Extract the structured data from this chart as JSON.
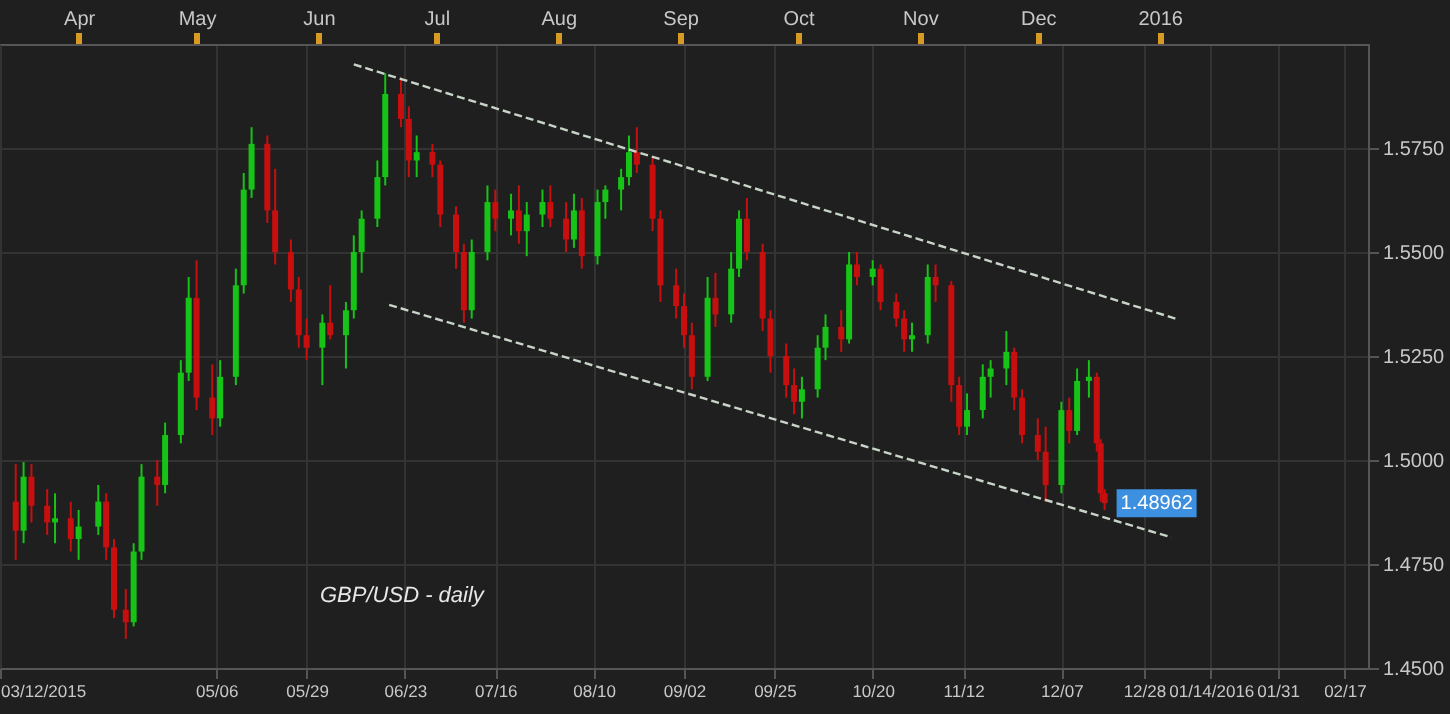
{
  "chart_data": {
    "type": "candlestick",
    "annotations": [
      "GBP/USD - daily",
      {
        "text": "1.48962",
        "x": "2015-12-18",
        "y": 1.48962
      }
    ],
    "x": [
      "2015-03-16",
      "2015-03-18",
      "2015-03-20",
      "2015-03-24",
      "2015-03-26",
      "2015-03-30",
      "2015-04-01",
      "2015-04-06",
      "2015-04-08",
      "2015-04-10",
      "2015-04-13",
      "2015-04-15",
      "2015-04-17",
      "2015-04-21",
      "2015-04-23",
      "2015-04-27",
      "2015-04-29",
      "2015-05-01",
      "2015-05-05",
      "2015-05-07",
      "2015-05-11",
      "2015-05-13",
      "2015-05-15",
      "2015-05-19",
      "2015-05-21",
      "2015-05-25",
      "2015-05-27",
      "2015-05-29",
      "2015-06-02",
      "2015-06-04",
      "2015-06-08",
      "2015-06-10",
      "2015-06-12",
      "2015-06-16",
      "2015-06-18",
      "2015-06-22",
      "2015-06-24",
      "2015-06-26",
      "2015-06-30",
      "2015-07-02",
      "2015-07-06",
      "2015-07-08",
      "2015-07-10",
      "2015-07-14",
      "2015-07-16",
      "2015-07-20",
      "2015-07-22",
      "2015-07-24",
      "2015-07-28",
      "2015-07-30",
      "2015-08-03",
      "2015-08-05",
      "2015-08-07",
      "2015-08-11",
      "2015-08-13",
      "2015-08-17",
      "2015-08-19",
      "2015-08-21",
      "2015-08-25",
      "2015-08-27",
      "2015-08-31",
      "2015-09-02",
      "2015-09-04",
      "2015-09-08",
      "2015-09-10",
      "2015-09-14",
      "2015-09-16",
      "2015-09-18",
      "2015-09-22",
      "2015-09-24",
      "2015-09-28",
      "2015-09-30",
      "2015-10-02",
      "2015-10-06",
      "2015-10-08",
      "2015-10-12",
      "2015-10-14",
      "2015-10-16",
      "2015-10-20",
      "2015-10-22",
      "2015-10-26",
      "2015-10-28",
      "2015-10-30",
      "2015-11-03",
      "2015-11-05",
      "2015-11-09",
      "2015-11-11",
      "2015-11-13",
      "2015-11-17",
      "2015-11-19",
      "2015-11-23",
      "2015-11-25",
      "2015-11-27",
      "2015-12-01",
      "2015-12-03",
      "2015-12-07",
      "2015-12-09",
      "2015-12-11",
      "2015-12-14",
      "2015-12-16",
      "2015-12-17",
      "2015-12-18"
    ],
    "ohlc": [
      [
        1.49,
        1.499,
        1.476,
        1.483
      ],
      [
        1.483,
        1.4995,
        1.48,
        1.496
      ],
      [
        1.496,
        1.499,
        1.485,
        1.489
      ],
      [
        1.489,
        1.493,
        1.482,
        1.485
      ],
      [
        1.485,
        1.492,
        1.48,
        1.486
      ],
      [
        1.486,
        1.49,
        1.478,
        1.481
      ],
      [
        1.481,
        1.488,
        1.476,
        1.484
      ],
      [
        1.484,
        1.494,
        1.482,
        1.49
      ],
      [
        1.49,
        1.492,
        1.476,
        1.479
      ],
      [
        1.479,
        1.481,
        1.462,
        1.464
      ],
      [
        1.464,
        1.469,
        1.457,
        1.461
      ],
      [
        1.461,
        1.48,
        1.46,
        1.478
      ],
      [
        1.478,
        1.499,
        1.476,
        1.496
      ],
      [
        1.496,
        1.5,
        1.489,
        1.494
      ],
      [
        1.494,
        1.509,
        1.492,
        1.506
      ],
      [
        1.506,
        1.524,
        1.504,
        1.521
      ],
      [
        1.521,
        1.544,
        1.519,
        1.539
      ],
      [
        1.539,
        1.548,
        1.512,
        1.515
      ],
      [
        1.515,
        1.523,
        1.506,
        1.51
      ],
      [
        1.51,
        1.524,
        1.508,
        1.52
      ],
      [
        1.52,
        1.546,
        1.518,
        1.542
      ],
      [
        1.542,
        1.569,
        1.54,
        1.565
      ],
      [
        1.565,
        1.58,
        1.563,
        1.576
      ],
      [
        1.576,
        1.578,
        1.557,
        1.56
      ],
      [
        1.56,
        1.57,
        1.547,
        1.55
      ],
      [
        1.55,
        1.553,
        1.538,
        1.541
      ],
      [
        1.541,
        1.544,
        1.527,
        1.53
      ],
      [
        1.53,
        1.534,
        1.524,
        1.527
      ],
      [
        1.527,
        1.535,
        1.518,
        1.533
      ],
      [
        1.533,
        1.542,
        1.529,
        1.53
      ],
      [
        1.53,
        1.538,
        1.522,
        1.536
      ],
      [
        1.536,
        1.554,
        1.534,
        1.55
      ],
      [
        1.55,
        1.56,
        1.545,
        1.558
      ],
      [
        1.558,
        1.572,
        1.556,
        1.568
      ],
      [
        1.568,
        1.593,
        1.566,
        1.588
      ],
      [
        1.588,
        1.592,
        1.58,
        1.582
      ],
      [
        1.582,
        1.585,
        1.568,
        1.572
      ],
      [
        1.572,
        1.578,
        1.568,
        1.574
      ],
      [
        1.574,
        1.576,
        1.568,
        1.571
      ],
      [
        1.571,
        1.572,
        1.556,
        1.559
      ],
      [
        1.559,
        1.561,
        1.546,
        1.55
      ],
      [
        1.55,
        1.552,
        1.533,
        1.536
      ],
      [
        1.536,
        1.553,
        1.534,
        1.55
      ],
      [
        1.55,
        1.566,
        1.548,
        1.562
      ],
      [
        1.562,
        1.565,
        1.555,
        1.558
      ],
      [
        1.558,
        1.564,
        1.554,
        1.56
      ],
      [
        1.56,
        1.566,
        1.552,
        1.555
      ],
      [
        1.555,
        1.562,
        1.549,
        1.559
      ],
      [
        1.559,
        1.565,
        1.556,
        1.562
      ],
      [
        1.562,
        1.566,
        1.556,
        1.558
      ],
      [
        1.558,
        1.562,
        1.55,
        1.553
      ],
      [
        1.553,
        1.564,
        1.551,
        1.56
      ],
      [
        1.56,
        1.563,
        1.546,
        1.549
      ],
      [
        1.549,
        1.565,
        1.547,
        1.562
      ],
      [
        1.562,
        1.566,
        1.558,
        1.565
      ],
      [
        1.565,
        1.57,
        1.56,
        1.568
      ],
      [
        1.568,
        1.578,
        1.566,
        1.574
      ],
      [
        1.574,
        1.58,
        1.569,
        1.571
      ],
      [
        1.571,
        1.573,
        1.555,
        1.558
      ],
      [
        1.558,
        1.56,
        1.538,
        1.542
      ],
      [
        1.542,
        1.546,
        1.534,
        1.537
      ],
      [
        1.537,
        1.54,
        1.527,
        1.53
      ],
      [
        1.53,
        1.533,
        1.517,
        1.52
      ],
      [
        1.52,
        1.544,
        1.519,
        1.539
      ],
      [
        1.539,
        1.545,
        1.532,
        1.535
      ],
      [
        1.535,
        1.55,
        1.533,
        1.546
      ],
      [
        1.546,
        1.56,
        1.544,
        1.558
      ],
      [
        1.558,
        1.563,
        1.548,
        1.55
      ],
      [
        1.55,
        1.552,
        1.531,
        1.534
      ],
      [
        1.534,
        1.536,
        1.521,
        1.525
      ],
      [
        1.525,
        1.528,
        1.515,
        1.518
      ],
      [
        1.518,
        1.522,
        1.511,
        1.514
      ],
      [
        1.514,
        1.52,
        1.51,
        1.517
      ],
      [
        1.517,
        1.53,
        1.515,
        1.527
      ],
      [
        1.527,
        1.535,
        1.524,
        1.532
      ],
      [
        1.532,
        1.536,
        1.526,
        1.529
      ],
      [
        1.529,
        1.55,
        1.528,
        1.547
      ],
      [
        1.547,
        1.55,
        1.542,
        1.544
      ],
      [
        1.544,
        1.548,
        1.542,
        1.546
      ],
      [
        1.546,
        1.547,
        1.536,
        1.538
      ],
      [
        1.538,
        1.54,
        1.532,
        1.534
      ],
      [
        1.534,
        1.536,
        1.526,
        1.529
      ],
      [
        1.529,
        1.533,
        1.526,
        1.53
      ],
      [
        1.53,
        1.547,
        1.528,
        1.544
      ],
      [
        1.544,
        1.547,
        1.538,
        1.542
      ],
      [
        1.542,
        1.543,
        1.514,
        1.518
      ],
      [
        1.518,
        1.52,
        1.506,
        1.508
      ],
      [
        1.508,
        1.516,
        1.506,
        1.512
      ],
      [
        1.512,
        1.523,
        1.51,
        1.52
      ],
      [
        1.52,
        1.524,
        1.515,
        1.522
      ],
      [
        1.522,
        1.531,
        1.518,
        1.526
      ],
      [
        1.526,
        1.527,
        1.512,
        1.515
      ],
      [
        1.515,
        1.517,
        1.504,
        1.506
      ],
      [
        1.506,
        1.51,
        1.5,
        1.502
      ],
      [
        1.502,
        1.508,
        1.49,
        1.494
      ],
      [
        1.494,
        1.514,
        1.492,
        1.512
      ],
      [
        1.512,
        1.515,
        1.504,
        1.507
      ],
      [
        1.507,
        1.522,
        1.506,
        1.519
      ],
      [
        1.519,
        1.524,
        1.515,
        1.52
      ],
      [
        1.52,
        1.521,
        1.502,
        1.504
      ],
      [
        1.504,
        1.505,
        1.49,
        1.492
      ],
      [
        1.492,
        1.493,
        1.488,
        1.48962
      ]
    ],
    "series": [
      {
        "type": "line",
        "x": [
          "2015-06-10",
          "2016-01-05"
        ],
        "values": [
          1.5951,
          1.534
        ],
        "color": "#c8d4c8",
        "line_style": "dashed"
      },
      {
        "type": "line",
        "x": [
          "2015-06-19",
          "2016-01-04"
        ],
        "values": [
          1.5373,
          1.4814
        ],
        "color": "#c8d4c8",
        "line_style": "dashed"
      }
    ],
    "xlim": [
      "2015-03-12",
      "2016-02-23"
    ],
    "xticks": [
      {
        "value": "2015-03-12",
        "label": "03/12/2015"
      },
      {
        "value": "2015-05-06",
        "label": "05/06"
      },
      {
        "value": "2015-05-29",
        "label": "05/29"
      },
      {
        "value": "2015-06-23",
        "label": "06/23"
      },
      {
        "value": "2015-07-16",
        "label": "07/16"
      },
      {
        "value": "2015-08-10",
        "label": "08/10"
      },
      {
        "value": "2015-09-02",
        "label": "09/02"
      },
      {
        "value": "2015-09-25",
        "label": "09/25"
      },
      {
        "value": "2015-10-20",
        "label": "10/20"
      },
      {
        "value": "2015-11-12",
        "label": "11/12"
      },
      {
        "value": "2015-12-07",
        "label": "12/07"
      },
      {
        "value": "2015-12-28",
        "label": "12/28"
      },
      {
        "value": "2016-01-14",
        "label": "01/14/2016"
      },
      {
        "value": "2016-01-31",
        "label": "01/31"
      },
      {
        "value": "2016-02-17",
        "label": "02/17"
      }
    ],
    "x2lim": [
      "2015-03-12",
      "2016-02-23"
    ],
    "x2ticks": [
      {
        "value": "2015-04-01",
        "label": "Apr"
      },
      {
        "value": "2015-05-01",
        "label": "May"
      },
      {
        "value": "2015-06-01",
        "label": "Jun"
      },
      {
        "value": "2015-07-01",
        "label": "Jul"
      },
      {
        "value": "2015-08-01",
        "label": "Aug"
      },
      {
        "value": "2015-09-01",
        "label": "Sep"
      },
      {
        "value": "2015-10-01",
        "label": "Oct"
      },
      {
        "value": "2015-11-01",
        "label": "Nov"
      },
      {
        "value": "2015-12-01",
        "label": "Dec"
      },
      {
        "value": "2016-01-01",
        "label": "2016"
      }
    ],
    "ylim": [
      1.45,
      1.6
    ],
    "yticks": [
      {
        "value": 1.45,
        "label": "1.4500"
      },
      {
        "value": 1.475,
        "label": "1.4750"
      },
      {
        "value": 1.5,
        "label": "1.5000"
      },
      {
        "value": 1.525,
        "label": "1.5250"
      },
      {
        "value": 1.55,
        "label": "1.5500"
      },
      {
        "value": 1.575,
        "label": "1.5750"
      }
    ],
    "grid": true
  }
}
